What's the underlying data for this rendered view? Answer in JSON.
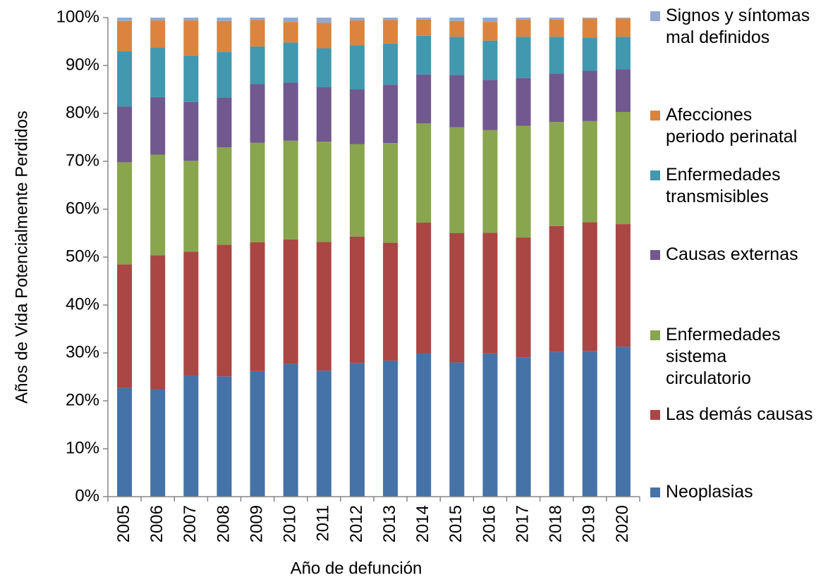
{
  "chart_data": {
    "type": "stacked_bar",
    "y_label": "Años de Vida Potencialmente Perdidos",
    "x_label": "Año de defunción",
    "categories": [
      "2005",
      "2006",
      "2007",
      "2008",
      "2009",
      "2010",
      "2011",
      "2012",
      "2013",
      "2014",
      "2015",
      "2016",
      "2017",
      "2018",
      "2019",
      "2020"
    ],
    "series": [
      {
        "name": "Neoplasias",
        "color": "#4572a7",
        "values": [
          22.7,
          22.5,
          25.3,
          25.1,
          26.2,
          27.7,
          26.3,
          27.9,
          28.4,
          30.0,
          28.0,
          29.9,
          29.1,
          30.2,
          30.4,
          31.3
        ]
      },
      {
        "name": "Las demás causas",
        "color": "#aa4643",
        "values": [
          25.8,
          27.9,
          25.8,
          27.5,
          26.9,
          26.0,
          26.9,
          26.4,
          24.6,
          27.2,
          27.0,
          25.2,
          25.0,
          26.3,
          26.9,
          25.6
        ]
      },
      {
        "name": "Enfermedades sistema circulatorio",
        "color": "#89a54e",
        "values": [
          21.3,
          21.0,
          19.0,
          20.3,
          20.8,
          20.6,
          20.9,
          19.3,
          20.8,
          20.7,
          22.1,
          21.4,
          23.3,
          21.7,
          21.1,
          23.4
        ]
      },
      {
        "name": "Causas externas",
        "color": "#71588f",
        "values": [
          11.6,
          12.0,
          12.3,
          10.4,
          12.2,
          12.1,
          11.4,
          11.4,
          12.2,
          10.2,
          10.9,
          10.5,
          10.0,
          10.1,
          10.5,
          8.9
        ]
      },
      {
        "name": "Enfermedades transmisibles",
        "color": "#4198af",
        "values": [
          11.6,
          10.4,
          9.7,
          9.5,
          7.9,
          8.4,
          8.1,
          9.2,
          8.6,
          8.1,
          8.0,
          8.2,
          8.6,
          7.7,
          6.9,
          6.8
        ]
      },
      {
        "name": "Afecciones periodo perinatal",
        "color": "#db843d",
        "values": [
          6.3,
          5.6,
          7.3,
          6.5,
          5.5,
          4.3,
          5.3,
          5.2,
          4.9,
          3.4,
          3.3,
          3.9,
          3.6,
          3.6,
          4.0,
          3.8
        ]
      },
      {
        "name": "Signos y síntomas mal definidos",
        "color": "#93a9cf",
        "values": [
          0.7,
          0.6,
          0.6,
          0.7,
          0.5,
          0.9,
          1.1,
          0.6,
          0.5,
          0.4,
          0.7,
          0.9,
          0.4,
          0.4,
          0.2,
          0.2
        ]
      }
    ],
    "ylim": [
      0,
      100
    ],
    "yticks": [
      {
        "value": 0,
        "label": "0%"
      },
      {
        "value": 10,
        "label": "10%"
      },
      {
        "value": 20,
        "label": "20%"
      },
      {
        "value": 30,
        "label": "30%"
      },
      {
        "value": 40,
        "label": "40%"
      },
      {
        "value": 50,
        "label": "50%"
      },
      {
        "value": 60,
        "label": "60%"
      },
      {
        "value": 70,
        "label": "70%"
      },
      {
        "value": 80,
        "label": "80%"
      },
      {
        "value": 90,
        "label": "90%"
      },
      {
        "value": 100,
        "label": "100%"
      }
    ],
    "legend": "right"
  }
}
